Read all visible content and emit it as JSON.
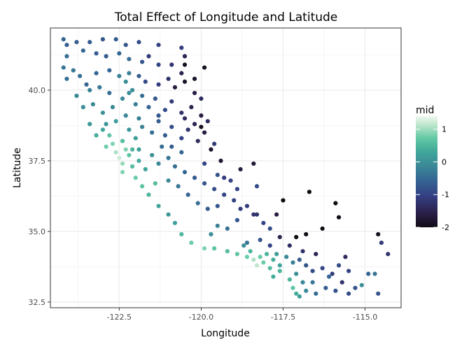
{
  "chart_data": {
    "type": "scatter",
    "title": "Total Effect of Longitude and Latitude",
    "xlabel": "Longitude",
    "ylabel": "Latitude",
    "xlim": [
      -124.6,
      -113.9
    ],
    "ylim": [
      32.3,
      42.2
    ],
    "x_ticks": [
      -122.5,
      -120.0,
      -117.5,
      -115.0
    ],
    "x_tick_labels": [
      "-122.5",
      "-120.0",
      "-117.5",
      "-115.0"
    ],
    "y_ticks": [
      32.5,
      35.0,
      37.5,
      40.0
    ],
    "y_tick_labels": [
      "32.5",
      "35.0",
      "37.5",
      "40.0"
    ],
    "grid": true,
    "color_variable": "mid",
    "color_range": [
      -2.0,
      1.4
    ],
    "colorbar_ticks": [
      1,
      0,
      -1,
      -2
    ],
    "colorbar_tick_labels": [
      "1",
      "0",
      "-1",
      "-2"
    ],
    "legend_position": "right",
    "colors": {
      "panel_border": "#333333",
      "grid": "#ebebeb",
      "scale": [
        "#0f0b13",
        "#2b1e46",
        "#343f82",
        "#356493",
        "#3b8897",
        "#40a79a",
        "#62c8a4",
        "#bde6cc",
        "#eef8f0"
      ]
    },
    "points": [
      [
        -124.2,
        41.8,
        -0.7
      ],
      [
        -124.1,
        41.6,
        -0.8
      ],
      [
        -123.8,
        41.7,
        -0.8
      ],
      [
        -123.4,
        41.7,
        -0.8
      ],
      [
        -123.0,
        41.8,
        -0.9
      ],
      [
        -122.6,
        41.8,
        -0.8
      ],
      [
        -122.3,
        41.6,
        -0.9
      ],
      [
        -121.9,
        41.7,
        -1.0
      ],
      [
        -121.3,
        41.6,
        -1.1
      ],
      [
        -120.6,
        41.5,
        -1.2
      ],
      [
        -120.5,
        41.2,
        -1.5
      ],
      [
        -124.1,
        41.2,
        -0.6
      ],
      [
        -123.6,
        41.4,
        -0.7
      ],
      [
        -123.2,
        41.3,
        -0.8
      ],
      [
        -122.9,
        41.2,
        -0.8
      ],
      [
        -122.5,
        41.3,
        -0.7
      ],
      [
        -122.2,
        41.1,
        -0.6
      ],
      [
        -121.8,
        41.0,
        -0.9
      ],
      [
        -121.3,
        40.9,
        -1.1
      ],
      [
        -120.9,
        40.9,
        -1.3
      ],
      [
        -120.6,
        40.6,
        -1.5
      ],
      [
        -124.2,
        40.8,
        -0.5
      ],
      [
        -123.9,
        40.7,
        -0.5
      ],
      [
        -124.1,
        40.4,
        -0.6
      ],
      [
        -123.7,
        40.5,
        -0.6
      ],
      [
        -123.5,
        40.2,
        -0.7
      ],
      [
        -123.2,
        40.6,
        -0.7
      ],
      [
        -122.8,
        40.7,
        -0.7
      ],
      [
        -122.5,
        40.5,
        -0.4
      ],
      [
        -122.3,
        40.3,
        -0.2
      ],
      [
        -122.2,
        40.6,
        -0.4
      ],
      [
        -121.9,
        40.5,
        -0.8
      ],
      [
        -121.7,
        40.3,
        -1.0
      ],
      [
        -121.3,
        40.2,
        -1.2
      ],
      [
        -121.0,
        40.4,
        -1.3
      ],
      [
        -120.8,
        40.1,
        -1.6
      ],
      [
        -120.5,
        40.3,
        -1.8
      ],
      [
        -120.2,
        39.9,
        -1.6
      ],
      [
        -120.0,
        39.7,
        -1.4
      ],
      [
        -123.8,
        39.8,
        -0.3
      ],
      [
        -123.6,
        39.4,
        -0.2
      ],
      [
        -123.3,
        39.5,
        -0.3
      ],
      [
        -123.0,
        39.2,
        -0.2
      ],
      [
        -122.7,
        39.4,
        -0.3
      ],
      [
        -122.4,
        39.7,
        -0.3
      ],
      [
        -122.2,
        39.9,
        -0.2
      ],
      [
        -122.0,
        39.5,
        -0.4
      ],
      [
        -121.8,
        39.8,
        -0.6
      ],
      [
        -121.6,
        39.4,
        -0.7
      ],
      [
        -121.4,
        39.7,
        -0.9
      ],
      [
        -121.1,
        39.3,
        -1.0
      ],
      [
        -120.9,
        39.6,
        -1.2
      ],
      [
        -120.6,
        39.2,
        -1.3
      ],
      [
        -120.3,
        39.4,
        -1.5
      ],
      [
        -120.0,
        39.1,
        -1.6
      ],
      [
        -119.8,
        38.9,
        -1.4
      ],
      [
        -123.4,
        38.8,
        -0.1
      ],
      [
        -123.0,
        38.6,
        0.1
      ],
      [
        -122.8,
        38.4,
        0.5
      ],
      [
        -122.6,
        38.9,
        0.0
      ],
      [
        -122.4,
        38.2,
        0.4
      ],
      [
        -122.2,
        38.6,
        -0.1
      ],
      [
        -122.0,
        38.3,
        0.0
      ],
      [
        -121.8,
        38.7,
        -0.4
      ],
      [
        -121.5,
        38.5,
        -0.6
      ],
      [
        -121.3,
        38.9,
        -0.8
      ],
      [
        -121.1,
        38.4,
        -0.8
      ],
      [
        -120.9,
        38.7,
        -1.0
      ],
      [
        -120.6,
        38.3,
        -1.1
      ],
      [
        -120.4,
        38.6,
        -1.3
      ],
      [
        -120.1,
        38.2,
        -1.4
      ],
      [
        -119.9,
        38.5,
        -1.6
      ],
      [
        -119.6,
        38.1,
        -1.2
      ],
      [
        -122.9,
        38.0,
        0.6
      ],
      [
        -122.6,
        37.8,
        0.9
      ],
      [
        -122.5,
        37.6,
        1.1
      ],
      [
        -122.4,
        37.4,
        0.8
      ],
      [
        -122.2,
        37.7,
        0.5
      ],
      [
        -122.1,
        37.3,
        0.4
      ],
      [
        -121.9,
        37.5,
        0.2
      ],
      [
        -121.7,
        37.2,
        0.1
      ],
      [
        -121.5,
        37.7,
        -0.2
      ],
      [
        -121.3,
        37.4,
        -0.3
      ],
      [
        -121.0,
        37.6,
        -0.5
      ],
      [
        -120.8,
        37.3,
        -0.6
      ],
      [
        -120.5,
        37.1,
        -0.7
      ],
      [
        -120.2,
        36.9,
        -0.8
      ],
      [
        -119.9,
        36.7,
        -0.9
      ],
      [
        -119.6,
        36.5,
        -1.0
      ],
      [
        -119.3,
        36.3,
        -1.1
      ],
      [
        -119.0,
        36.1,
        -1.1
      ],
      [
        -118.8,
        35.8,
        -1.2
      ],
      [
        -122.0,
        36.9,
        0.6
      ],
      [
        -121.8,
        36.6,
        0.5
      ],
      [
        -121.6,
        36.3,
        0.3
      ],
      [
        -121.3,
        35.9,
        0.1
      ],
      [
        -121.0,
        35.6,
        -0.1
      ],
      [
        -120.8,
        35.3,
        0.0
      ],
      [
        -120.6,
        34.9,
        0.3
      ],
      [
        -120.3,
        34.6,
        0.6
      ],
      [
        -119.9,
        34.4,
        0.7
      ],
      [
        -119.6,
        34.4,
        0.5
      ],
      [
        -119.2,
        34.3,
        0.4
      ],
      [
        -118.9,
        34.2,
        0.5
      ],
      [
        -118.6,
        34.1,
        0.6
      ],
      [
        -118.4,
        34.0,
        0.9
      ],
      [
        -118.3,
        33.8,
        1.0
      ],
      [
        -118.1,
        33.9,
        0.6
      ],
      [
        -117.9,
        33.7,
        0.4
      ],
      [
        -117.8,
        34.0,
        0.2
      ],
      [
        -117.6,
        33.8,
        0.1
      ],
      [
        -117.4,
        34.1,
        -0.3
      ],
      [
        -117.2,
        33.9,
        -0.4
      ],
      [
        -117.0,
        34.0,
        -0.8
      ],
      [
        -116.8,
        33.8,
        -0.9
      ],
      [
        -116.6,
        33.6,
        -1.0
      ],
      [
        -116.3,
        33.7,
        -1.1
      ],
      [
        -116.0,
        33.5,
        -1.2
      ],
      [
        -115.7,
        33.2,
        -1.3
      ],
      [
        -117.3,
        33.3,
        0.3
      ],
      [
        -117.2,
        33.0,
        0.5
      ],
      [
        -117.1,
        32.8,
        0.2
      ],
      [
        -117.0,
        32.7,
        0.0
      ],
      [
        -116.8,
        32.9,
        -0.3
      ],
      [
        -116.5,
        32.8,
        -0.6
      ],
      [
        -116.2,
        33.0,
        -0.8
      ],
      [
        -115.9,
        32.9,
        -0.9
      ],
      [
        -115.5,
        32.8,
        -1.0
      ],
      [
        -115.1,
        33.1,
        -0.2
      ],
      [
        -114.7,
        33.5,
        -0.5
      ],
      [
        -114.6,
        32.8,
        -0.9
      ],
      [
        -114.6,
        34.9,
        -1.9
      ],
      [
        -114.3,
        34.2,
        -1.3
      ],
      [
        -114.5,
        34.6,
        -1.2
      ],
      [
        -115.8,
        35.5,
        -2.0
      ],
      [
        -115.9,
        36.0,
        -2.0
      ],
      [
        -116.7,
        36.4,
        -2.0
      ],
      [
        -117.5,
        36.1,
        -2.0
      ],
      [
        -116.3,
        35.1,
        -2.0
      ],
      [
        -116.8,
        34.9,
        -2.0
      ],
      [
        -117.1,
        34.8,
        -2.0
      ],
      [
        -117.7,
        35.6,
        -1.6
      ],
      [
        -118.1,
        35.3,
        -1.1
      ],
      [
        -118.4,
        35.6,
        -1.3
      ],
      [
        -118.9,
        35.4,
        -0.9
      ],
      [
        -119.2,
        35.1,
        -0.6
      ],
      [
        -119.5,
        35.2,
        -0.4
      ],
      [
        -119.7,
        34.9,
        -0.2
      ],
      [
        -118.6,
        34.6,
        -0.5
      ],
      [
        -118.2,
        34.7,
        -0.9
      ],
      [
        -117.9,
        34.5,
        -1.1
      ],
      [
        -117.3,
        34.5,
        -1.4
      ],
      [
        -116.9,
        34.3,
        -1.3
      ],
      [
        -116.5,
        34.2,
        -1.5
      ],
      [
        -115.6,
        34.1,
        -1.4
      ],
      [
        -119.1,
        36.8,
        -1.1
      ],
      [
        -118.8,
        37.2,
        -1.6
      ],
      [
        -119.4,
        37.5,
        -1.7
      ],
      [
        -119.7,
        37.9,
        -1.8
      ],
      [
        -120.0,
        38.7,
        -1.9
      ],
      [
        -118.4,
        37.4,
        -1.7
      ],
      [
        -118.3,
        36.6,
        -1.0
      ],
      [
        -119.9,
        40.8,
        -1.9
      ],
      [
        -120.2,
        40.4,
        -1.8
      ],
      [
        -120.5,
        40.9,
        -1.9
      ],
      [
        -121.6,
        41.2,
        -1.2
      ],
      [
        -122.1,
        40.0,
        -0.2
      ],
      [
        -122.3,
        39.1,
        -0.3
      ],
      [
        -121.9,
        39.0,
        -0.4
      ],
      [
        -122.8,
        39.9,
        -0.6
      ],
      [
        -123.1,
        40.1,
        -0.5
      ],
      [
        -121.2,
        38.0,
        -0.6
      ],
      [
        -120.9,
        38.0,
        -0.8
      ],
      [
        -120.6,
        37.8,
        -0.7
      ],
      [
        -121.0,
        36.8,
        -0.3
      ],
      [
        -120.7,
        36.6,
        -0.5
      ],
      [
        -120.4,
        36.3,
        -0.7
      ],
      [
        -120.1,
        36.0,
        -0.6
      ],
      [
        -119.8,
        35.8,
        -0.8
      ],
      [
        -122.3,
        37.9,
        0.7
      ],
      [
        -122.1,
        37.9,
        0.3
      ],
      [
        -121.9,
        37.9,
        0.0
      ],
      [
        -122.4,
        37.1,
        0.7
      ],
      [
        -121.4,
        36.7,
        0.4
      ],
      [
        -118.7,
        34.5,
        -0.2
      ],
      [
        -118.5,
        34.3,
        0.3
      ],
      [
        -118.2,
        34.1,
        0.6
      ],
      [
        -118.0,
        34.2,
        0.3
      ],
      [
        -117.7,
        34.2,
        0.0
      ],
      [
        -117.8,
        33.4,
        0.2
      ],
      [
        -117.6,
        33.6,
        0.3
      ],
      [
        -117.1,
        33.5,
        -0.2
      ],
      [
        -116.9,
        33.2,
        -0.3
      ],
      [
        -116.6,
        33.2,
        -0.5
      ],
      [
        -116.1,
        33.4,
        -0.7
      ],
      [
        -115.8,
        33.8,
        -1.0
      ],
      [
        -115.5,
        33.6,
        -1.1
      ],
      [
        -115.3,
        33.0,
        -0.9
      ],
      [
        -114.9,
        33.5,
        -0.7
      ],
      [
        -120.5,
        39.0,
        -1.4
      ],
      [
        -120.2,
        38.8,
        -1.5
      ],
      [
        -119.9,
        37.4,
        -1.1
      ],
      [
        -119.5,
        37.0,
        -0.9
      ],
      [
        -119.3,
        36.9,
        -1.2
      ],
      [
        -118.9,
        36.5,
        -1.1
      ],
      [
        -119.5,
        35.9,
        -0.9
      ],
      [
        -118.6,
        35.9,
        -1.2
      ],
      [
        -118.3,
        35.6,
        -1.3
      ],
      [
        -117.9,
        35.1,
        -1.0
      ],
      [
        -117.6,
        34.8,
        -1.5
      ],
      [
        -123.4,
        40.0,
        -0.4
      ],
      [
        -122.9,
        38.8,
        -0.1
      ],
      [
        -123.2,
        38.4,
        0.2
      ],
      [
        -122.7,
        38.1,
        0.7
      ],
      [
        -121.3,
        39.1,
        -0.9
      ]
    ]
  }
}
